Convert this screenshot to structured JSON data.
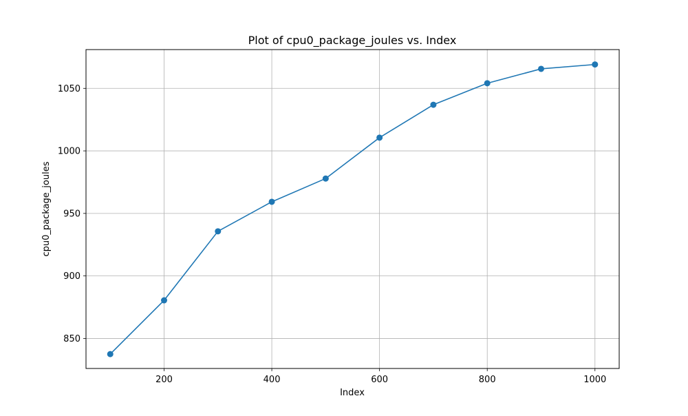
{
  "chart_data": {
    "type": "line",
    "title": "Plot of cpu0_package_joules vs. Index",
    "xlabel": "Index",
    "ylabel": "cpu0_package_joules",
    "x": [
      100,
      200,
      300,
      400,
      500,
      600,
      700,
      800,
      900,
      1000
    ],
    "series": [
      {
        "values": [
          837.5,
          880.5,
          935.7,
          959.3,
          977.9,
          1010.6,
          1036.9,
          1054.1,
          1065.6,
          1069.1
        ],
        "color": "#1f77b4",
        "marker": "circle"
      }
    ],
    "xlim": [
      55,
      1045
    ],
    "ylim": [
      826,
      1081
    ],
    "x_ticks": [
      200,
      400,
      600,
      800,
      1000
    ],
    "y_ticks": [
      850,
      900,
      950,
      1000,
      1050
    ],
    "x_tick_labels": [
      "200",
      "400",
      "600",
      "800",
      "1000"
    ],
    "y_tick_labels": [
      "850",
      "900",
      "950",
      "1000",
      "1050"
    ],
    "grid": true,
    "colors": {
      "line": "#1f77b4",
      "grid": "#b0b0b0",
      "axes": "#000000",
      "background": "#ffffff"
    }
  }
}
